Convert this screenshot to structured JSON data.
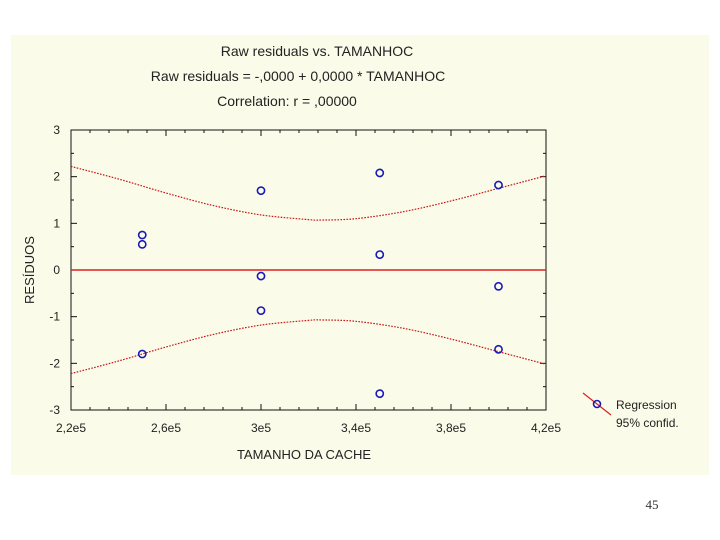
{
  "chart_data": {
    "type": "scatter",
    "title_lines": [
      "Raw residuals vs. TAMANHOC",
      "Raw residuals = -,0000 + 0,0000 * TAMANHOC",
      "Correlation: r = ,00000"
    ],
    "xlabel": "TAMANHO DA CACHE",
    "ylabel": "RESÍDUOS",
    "xlim": [
      220000,
      420000
    ],
    "ylim": [
      -3,
      3
    ],
    "x_ticks": [
      {
        "value": 220000,
        "label": "2,2e5"
      },
      {
        "value": 260000,
        "label": "2,6e5"
      },
      {
        "value": 300000,
        "label": "3e5"
      },
      {
        "value": 340000,
        "label": "3,4e5"
      },
      {
        "value": 380000,
        "label": "3,8e5"
      },
      {
        "value": 420000,
        "label": "4,2e5"
      }
    ],
    "y_ticks": [
      {
        "value": 3,
        "label": "3"
      },
      {
        "value": 2,
        "label": "2"
      },
      {
        "value": 1,
        "label": "1"
      },
      {
        "value": 0,
        "label": "0"
      },
      {
        "value": -1,
        "label": "-1"
      },
      {
        "value": -2,
        "label": "-2"
      },
      {
        "value": -3,
        "label": "-3"
      }
    ],
    "points": [
      {
        "x": 250000,
        "y": 0.75
      },
      {
        "x": 250000,
        "y": 0.55
      },
      {
        "x": 250000,
        "y": -1.8
      },
      {
        "x": 300000,
        "y": 1.7
      },
      {
        "x": 300000,
        "y": -0.13
      },
      {
        "x": 300000,
        "y": -0.87
      },
      {
        "x": 350000,
        "y": 2.08
      },
      {
        "x": 350000,
        "y": 0.33
      },
      {
        "x": 350000,
        "y": -2.65
      },
      {
        "x": 400000,
        "y": 1.82
      },
      {
        "x": 400000,
        "y": -0.35
      },
      {
        "x": 400000,
        "y": -1.7
      }
    ],
    "regression": {
      "intercept": 0,
      "slope": 0
    },
    "confidence_band": {
      "x": [
        220000,
        240000,
        260000,
        280000,
        300000,
        320000,
        325000,
        340000,
        360000,
        380000,
        400000,
        420000
      ],
      "upper": [
        2.22,
        1.95,
        1.65,
        1.38,
        1.18,
        1.08,
        1.07,
        1.1,
        1.25,
        1.48,
        1.75,
        2.02
      ],
      "lower": [
        -2.22,
        -1.95,
        -1.65,
        -1.38,
        -1.18,
        -1.08,
        -1.07,
        -1.1,
        -1.25,
        -1.48,
        -1.75,
        -2.02
      ]
    },
    "legend": {
      "position": "right",
      "entries": [
        "Regression",
        "95% confid."
      ]
    },
    "colors": {
      "point": "#1a1ab8",
      "regression": "#e02020",
      "confidence": "#c81414",
      "background": "#fbfbe9"
    }
  },
  "page_number": "45"
}
